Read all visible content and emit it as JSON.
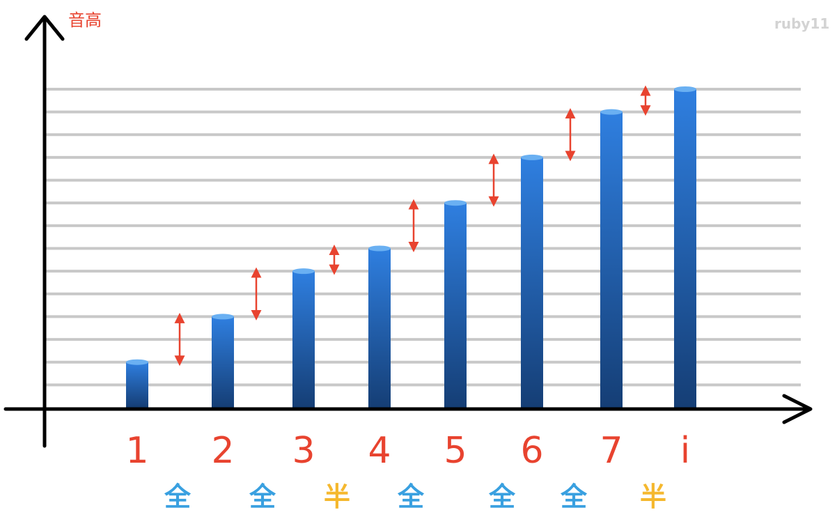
{
  "watermark": "ruby11",
  "chart_data": {
    "type": "bar",
    "ylabel": "音高",
    "xlabel": "",
    "categories": [
      "1",
      "2",
      "3",
      "4",
      "5",
      "6",
      "7",
      "i"
    ],
    "values": [
      2,
      4,
      6,
      7,
      9,
      11,
      13,
      14
    ],
    "ylim": [
      0,
      14
    ],
    "grid": true,
    "steps": [
      {
        "label": "全",
        "value": 2,
        "color": "#39a0e0"
      },
      {
        "label": "全",
        "value": 2,
        "color": "#39a0e0"
      },
      {
        "label": "半",
        "value": 1,
        "color": "#f5b82e"
      },
      {
        "label": "全",
        "value": 2,
        "color": "#39a0e0"
      },
      {
        "label": "全",
        "value": 2,
        "color": "#39a0e0"
      },
      {
        "label": "全",
        "value": 2,
        "color": "#39a0e0"
      },
      {
        "label": "半",
        "value": 1,
        "color": "#f5b82e"
      }
    ],
    "colors": {
      "bar_top": "#2f7fe0",
      "bar_bottom": "#153e75",
      "bar_cap": "#6ab0f2",
      "grid": "#c8c8c8",
      "axis": "#000000",
      "ylabel": "#e8432f",
      "tick_label": "#e8432f",
      "step_arrow": "#e8432f"
    }
  }
}
